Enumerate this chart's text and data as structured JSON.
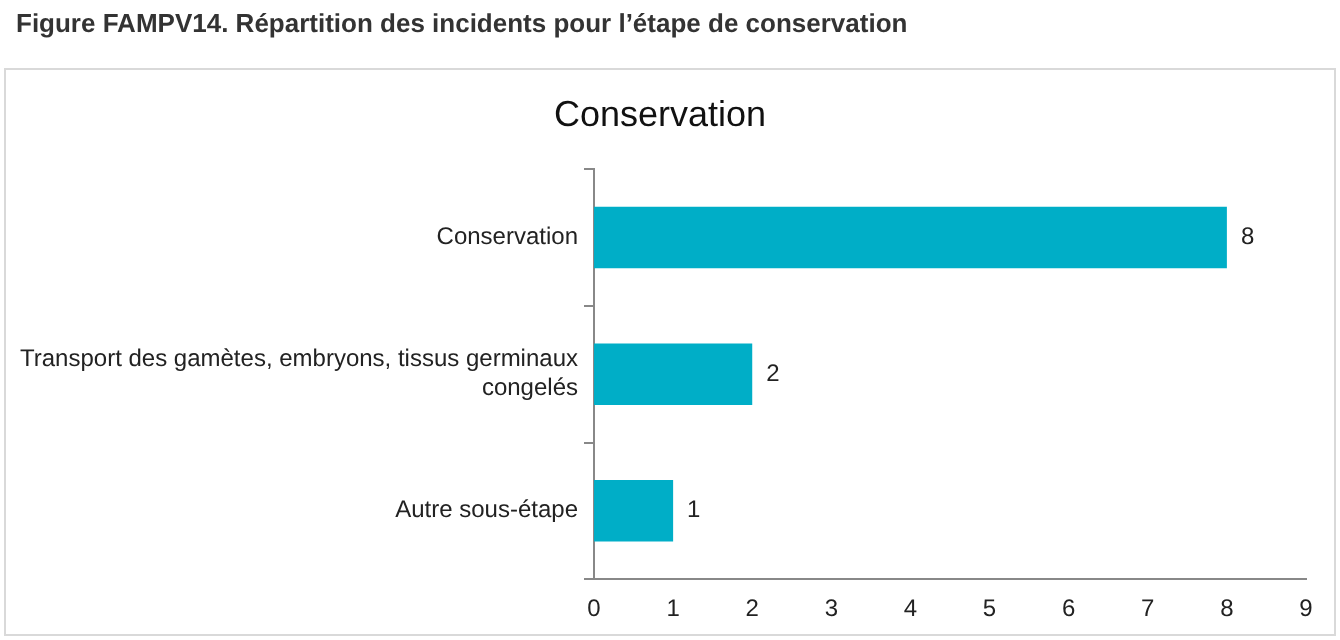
{
  "chart_data": {
    "type": "bar",
    "orientation": "horizontal",
    "title": "Figure FAMPV14. Répartition des incidents pour l’étape de conservation",
    "subtitle": "Conservation",
    "categories": [
      "Conservation",
      "Transport des gamètes, embryons, tissus germinaux congelés",
      "Autre sous-étape"
    ],
    "values": [
      8,
      2,
      1
    ],
    "color": "#00aec7",
    "xlim": [
      0,
      9
    ],
    "xticks": [
      0,
      1,
      2,
      3,
      4,
      5,
      6,
      7,
      8,
      9
    ],
    "grid": false,
    "legend": false,
    "data_labels": true
  }
}
